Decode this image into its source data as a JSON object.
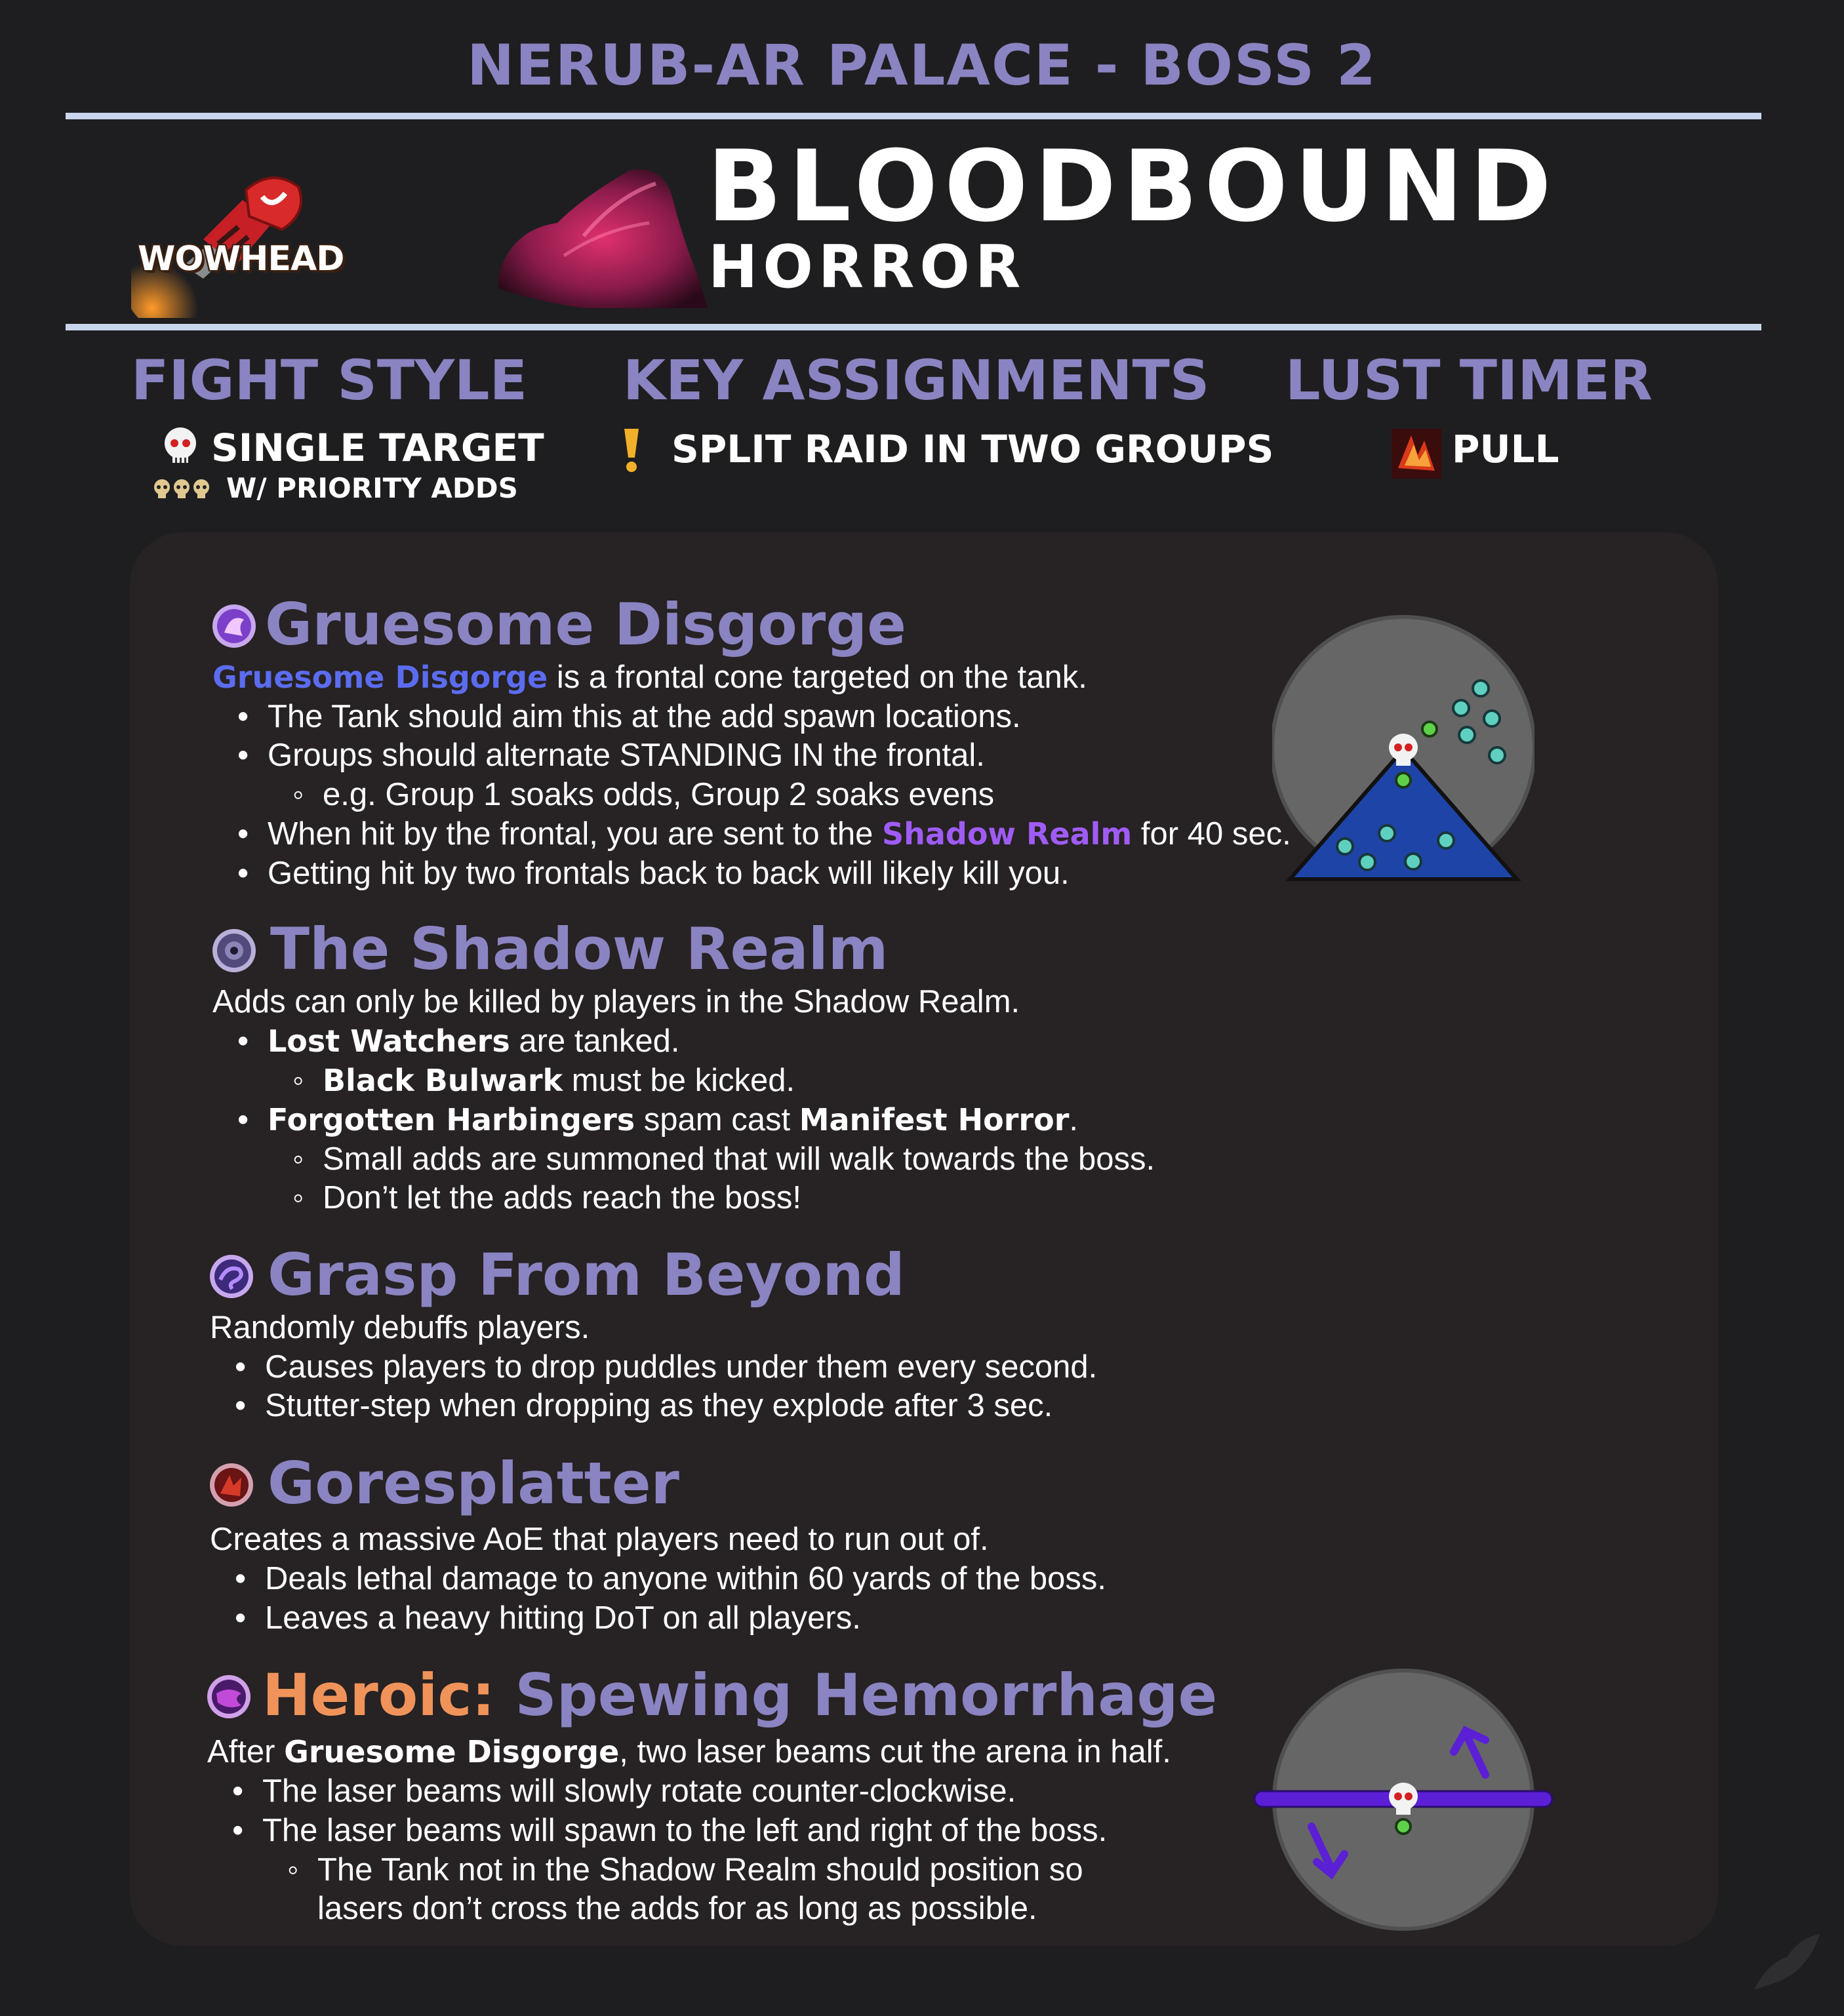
{
  "header": {
    "raid_title": "NERUB-AR PALACE - BOSS 2",
    "logo_text": "WOWHEAD",
    "boss_name": "BLOODBOUND",
    "boss_subtitle": "HORROR"
  },
  "summary": {
    "fight_style": {
      "heading": "FIGHT STYLE",
      "value": "SINGLE TARGET",
      "detail": "W/ PRIORITY ADDS"
    },
    "key_assignments": {
      "heading": "KEY ASSIGNMENTS",
      "value": "SPLIT RAID IN TWO GROUPS"
    },
    "lust_timer": {
      "heading": "LUST TIMER",
      "value": "PULL"
    }
  },
  "sections": {
    "gruesome": {
      "title": "Gruesome Disgorge",
      "intro_link": "Gruesome Disgorge",
      "intro_rest": " is a frontal cone targeted on the tank.",
      "b1": "The Tank should aim this at the add spawn locations.",
      "b2": "Groups should alternate STANDING IN the frontal.",
      "b2a": "e.g. Group 1 soaks odds, Group 2 soaks evens",
      "b3_pre": "When hit by the frontal, you are sent to the ",
      "b3_link": "Shadow Realm",
      "b3_post": " for 40 sec.",
      "b4": "Getting hit by two frontals back to back will likely kill you."
    },
    "shadow": {
      "title": "The Shadow Realm",
      "intro": "Adds can only be killed by players in the Shadow Realm.",
      "b1_bold": "Lost Watchers",
      "b1_rest": " are tanked.",
      "b1a_bold": "Black Bulwark",
      "b1a_rest": " must be kicked.",
      "b2_bold": "Forgotten Harbingers",
      "b2_mid": " spam cast ",
      "b2_bold2": "Manifest Horror",
      "b2_end": ".",
      "b2a": "Small adds are summoned that will walk towards the boss.",
      "b2b": "Don’t let the adds reach the boss!"
    },
    "grasp": {
      "title": "Grasp From Beyond",
      "intro": "Randomly debuffs players.",
      "b1": "Causes players to drop puddles under them every second.",
      "b2": "Stutter-step when dropping as they explode after 3 sec."
    },
    "gore": {
      "title": "Goresplatter",
      "intro": "Creates a massive AoE that players need to run out of.",
      "b1": "Deals lethal damage to anyone within 60 yards of the boss.",
      "b2": "Leaves a heavy hitting DoT on all players."
    },
    "heroic": {
      "title_prefix": "Heroic: ",
      "title": "Spewing Hemorrhage",
      "intro_pre": "After ",
      "intro_bold": "Gruesome Disgorge",
      "intro_post": ", two laser beams cut the arena in half.",
      "b1": "The laser beams will slowly rotate counter-clockwise.",
      "b2": "The laser beams will spawn to the left and right of the boss.",
      "b2a_l1": "The Tank not in the Shadow Realm should position so",
      "b2a_l2": "lasers don’t cross the adds for as long as possible."
    }
  },
  "colors": {
    "heading": "#8a84c2",
    "heroic": "#f0935a",
    "link_blue": "#5b6cf0",
    "link_purple": "#9f5cf5",
    "cone": "#1f44a8",
    "arena": "#666666",
    "laser": "#5b1fd6"
  }
}
